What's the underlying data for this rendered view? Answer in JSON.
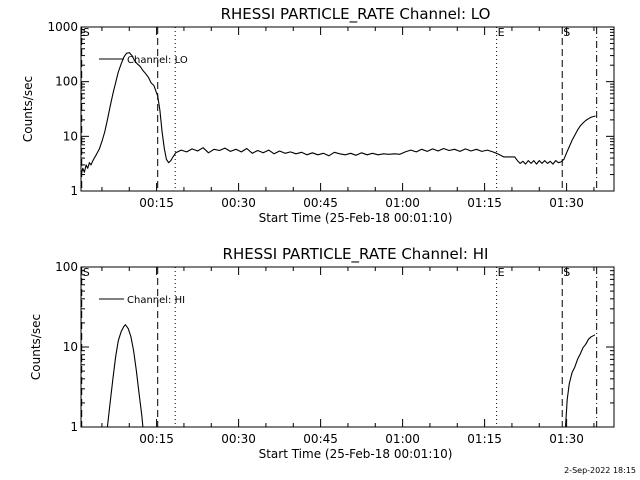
{
  "chart_data": [
    {
      "type": "line",
      "title": "RHESSI PARTICLE_RATE Channel: LO",
      "xlabel": "Start Time (25-Feb-18 00:01:10)",
      "ylabel": "Counts/sec",
      "yscale": "log",
      "ylim": [
        1,
        1000
      ],
      "y_ticks": [
        1,
        10,
        100,
        1000
      ],
      "y_tick_labels": [
        "1",
        "10",
        "100",
        "1000"
      ],
      "xlim_min": [
        1.17,
        98.67
      ],
      "x_ticks": [
        15,
        30,
        45,
        60,
        75,
        90
      ],
      "x_tick_labels": [
        "00:15",
        "00:30",
        "00:45",
        "01:00",
        "01:15",
        "01:30"
      ],
      "legend": {
        "label": "Channel: LO",
        "placement": "top-left"
      },
      "markers": [
        {
          "label": "S",
          "x": 1.3,
          "style": "dashed"
        },
        {
          "label": "",
          "x": 15.2,
          "style": "dashed"
        },
        {
          "label": "",
          "x": 18.4,
          "style": "dotted"
        },
        {
          "label": "E",
          "x": 77.2,
          "style": "dotted"
        },
        {
          "label": "S",
          "x": 89.2,
          "style": "dashed"
        },
        {
          "label": "",
          "x": 95.5,
          "style": "dashdot"
        }
      ],
      "series": [
        {
          "name": "Channel: LO",
          "points": [
            [
              1.2,
              2.0
            ],
            [
              1.5,
              2.6
            ],
            [
              1.8,
              2.2
            ],
            [
              2.1,
              3.0
            ],
            [
              2.4,
              2.6
            ],
            [
              2.7,
              3.3
            ],
            [
              3.0,
              3.0
            ],
            [
              3.3,
              3.5
            ],
            [
              3.6,
              4.0
            ],
            [
              4.0,
              4.7
            ],
            [
              4.5,
              5.8
            ],
            [
              5.0,
              8.0
            ],
            [
              5.5,
              12.0
            ],
            [
              6.0,
              20.0
            ],
            [
              6.5,
              35.0
            ],
            [
              7.0,
              60.0
            ],
            [
              7.5,
              95.0
            ],
            [
              8.0,
              150.0
            ],
            [
              8.5,
              210.0
            ],
            [
              9.0,
              280.0
            ],
            [
              9.5,
              330.0
            ],
            [
              10.0,
              340.0
            ],
            [
              10.5,
              300.0
            ],
            [
              11.0,
              240.0
            ],
            [
              11.5,
              210.0
            ],
            [
              12.0,
              190.0
            ],
            [
              12.5,
              160.0
            ],
            [
              13.0,
              140.0
            ],
            [
              13.5,
              120.0
            ],
            [
              14.0,
              95.0
            ],
            [
              14.5,
              85.0
            ],
            [
              14.8,
              70.0
            ],
            [
              15.2,
              55.0
            ],
            [
              15.6,
              30.0
            ],
            [
              16.0,
              12.0
            ],
            [
              16.4,
              6.0
            ],
            [
              16.8,
              3.8
            ],
            [
              17.2,
              3.3
            ],
            [
              17.6,
              3.6
            ],
            [
              18.0,
              4.2
            ],
            [
              18.5,
              5.0
            ],
            [
              19.5,
              5.6
            ],
            [
              20.5,
              5.2
            ],
            [
              21.5,
              5.9
            ],
            [
              22.5,
              5.4
            ],
            [
              23.5,
              6.2
            ],
            [
              24.5,
              5.0
            ],
            [
              25.5,
              5.8
            ],
            [
              26.5,
              5.5
            ],
            [
              27.5,
              6.1
            ],
            [
              28.5,
              5.3
            ],
            [
              29.5,
              5.8
            ],
            [
              30.5,
              5.2
            ],
            [
              31.5,
              6.0
            ],
            [
              32.5,
              4.9
            ],
            [
              33.5,
              5.5
            ],
            [
              34.5,
              5.0
            ],
            [
              35.5,
              5.6
            ],
            [
              36.5,
              4.8
            ],
            [
              37.5,
              5.4
            ],
            [
              38.5,
              4.9
            ],
            [
              39.5,
              5.2
            ],
            [
              40.5,
              4.8
            ],
            [
              41.5,
              5.1
            ],
            [
              42.5,
              4.6
            ],
            [
              43.5,
              5.0
            ],
            [
              44.5,
              4.6
            ],
            [
              45.5,
              4.9
            ],
            [
              46.5,
              4.4
            ],
            [
              47.5,
              5.1
            ],
            [
              48.5,
              4.8
            ],
            [
              49.5,
              4.6
            ],
            [
              50.5,
              4.9
            ],
            [
              51.5,
              4.5
            ],
            [
              52.5,
              5.0
            ],
            [
              53.5,
              4.6
            ],
            [
              54.5,
              4.9
            ],
            [
              55.5,
              4.6
            ],
            [
              56.5,
              4.8
            ],
            [
              57.5,
              4.7
            ],
            [
              58.5,
              4.8
            ],
            [
              59.5,
              4.7
            ],
            [
              60.5,
              5.2
            ],
            [
              61.5,
              5.6
            ],
            [
              62.5,
              5.2
            ],
            [
              63.5,
              5.8
            ],
            [
              64.5,
              5.3
            ],
            [
              65.5,
              5.9
            ],
            [
              66.5,
              5.4
            ],
            [
              67.5,
              6.0
            ],
            [
              68.5,
              5.5
            ],
            [
              69.5,
              5.8
            ],
            [
              70.5,
              5.3
            ],
            [
              71.5,
              5.9
            ],
            [
              72.5,
              5.4
            ],
            [
              73.5,
              5.8
            ],
            [
              74.5,
              5.3
            ],
            [
              75.5,
              5.6
            ],
            [
              76.5,
              5.2
            ],
            [
              77.2,
              4.9
            ],
            [
              78.5,
              4.2
            ],
            [
              79.5,
              4.2
            ],
            [
              80.5,
              4.2
            ],
            [
              81.0,
              3.6
            ],
            [
              81.5,
              3.2
            ],
            [
              82.0,
              3.5
            ],
            [
              82.5,
              3.1
            ],
            [
              83.0,
              3.6
            ],
            [
              83.5,
              3.2
            ],
            [
              84.0,
              3.6
            ],
            [
              84.5,
              3.1
            ],
            [
              85.0,
              3.6
            ],
            [
              85.5,
              3.2
            ],
            [
              86.0,
              3.6
            ],
            [
              86.5,
              3.2
            ],
            [
              87.0,
              3.5
            ],
            [
              87.5,
              3.1
            ],
            [
              88.0,
              3.6
            ],
            [
              88.5,
              3.3
            ],
            [
              89.0,
              3.4
            ],
            [
              89.5,
              3.8
            ],
            [
              90.0,
              5.0
            ],
            [
              90.5,
              6.5
            ],
            [
              91.0,
              8.5
            ],
            [
              91.5,
              10.5
            ],
            [
              92.0,
              13.0
            ],
            [
              92.5,
              15.5
            ],
            [
              93.0,
              17.5
            ],
            [
              93.5,
              19.5
            ],
            [
              94.0,
              21.0
            ],
            [
              94.5,
              22.5
            ],
            [
              95.3,
              23.5
            ]
          ]
        }
      ]
    },
    {
      "type": "line",
      "title": "RHESSI PARTICLE_RATE Channel: HI",
      "xlabel": "Start Time (25-Feb-18 00:01:10)",
      "ylabel": "Counts/sec",
      "yscale": "log",
      "ylim": [
        1,
        100
      ],
      "y_ticks": [
        1,
        10,
        100
      ],
      "y_tick_labels": [
        "1",
        "10",
        "100"
      ],
      "xlim_min": [
        1.17,
        98.67
      ],
      "x_ticks": [
        15,
        30,
        45,
        60,
        75,
        90
      ],
      "x_tick_labels": [
        "00:15",
        "00:30",
        "00:45",
        "01:00",
        "01:15",
        "01:30"
      ],
      "legend": {
        "label": "Channel: HI",
        "placement": "top-left"
      },
      "markers": [
        {
          "label": "S",
          "x": 1.3,
          "style": "dashed"
        },
        {
          "label": "",
          "x": 15.2,
          "style": "dashed"
        },
        {
          "label": "",
          "x": 18.4,
          "style": "dotted"
        },
        {
          "label": "E",
          "x": 77.2,
          "style": "dotted"
        },
        {
          "label": "S",
          "x": 89.2,
          "style": "dashed"
        },
        {
          "label": "",
          "x": 95.5,
          "style": "dashdot"
        }
      ],
      "series": [
        {
          "name": "Channel: HI",
          "segments": [
            [
              [
                6.0,
                1.0
              ],
              [
                6.5,
                2.0
              ],
              [
                7.0,
                4.0
              ],
              [
                7.5,
                7.5
              ],
              [
                8.0,
                12.0
              ],
              [
                8.5,
                15.5
              ],
              [
                9.0,
                18.0
              ],
              [
                9.3,
                19.0
              ],
              [
                9.8,
                17.0
              ],
              [
                10.3,
                13.5
              ],
              [
                10.8,
                9.0
              ],
              [
                11.3,
                5.0
              ],
              [
                11.8,
                2.6
              ],
              [
                12.3,
                1.4
              ],
              [
                12.5,
                1.0
              ]
            ],
            [
              [
                89.8,
                1.0
              ],
              [
                90.1,
                2.2
              ],
              [
                90.5,
                3.5
              ],
              [
                91.0,
                4.8
              ],
              [
                91.5,
                5.6
              ],
              [
                92.0,
                7.0
              ],
              [
                92.5,
                8.2
              ],
              [
                93.0,
                9.8
              ],
              [
                93.5,
                10.8
              ],
              [
                94.0,
                12.5
              ],
              [
                94.5,
                13.4
              ],
              [
                95.2,
                14.2
              ]
            ]
          ]
        }
      ]
    }
  ],
  "footer": {
    "timestamp": "2-Sep-2022 18:15"
  }
}
